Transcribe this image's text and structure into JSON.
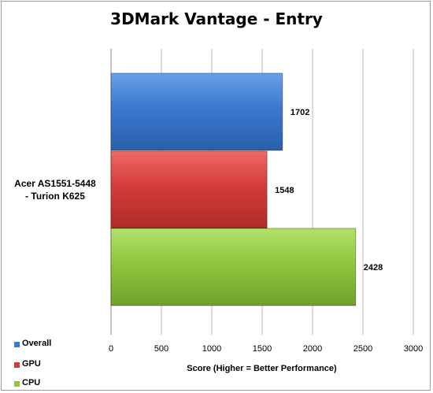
{
  "chart_data": {
    "type": "bar",
    "orientation": "horizontal",
    "title": "3DMark Vantage - Entry",
    "category_lines": [
      "Acer AS1551-5448",
      "- Turion K625"
    ],
    "xlabel": "Score (Higher = Better Performance)",
    "xlim": [
      0,
      3000
    ],
    "xticks": [
      "0",
      "500",
      "1000",
      "1500",
      "2000",
      "2500",
      "3000"
    ],
    "grid": true,
    "legend_position": "bottom-left",
    "series": [
      {
        "name": "Overall",
        "value": 1702,
        "color": "#3c78d0",
        "label": "1702"
      },
      {
        "name": "GPU",
        "value": 1548,
        "color": "#d43c3a",
        "label": "1548"
      },
      {
        "name": "CPU",
        "value": 2428,
        "color": "#8ec63e",
        "label": "2428"
      }
    ]
  }
}
